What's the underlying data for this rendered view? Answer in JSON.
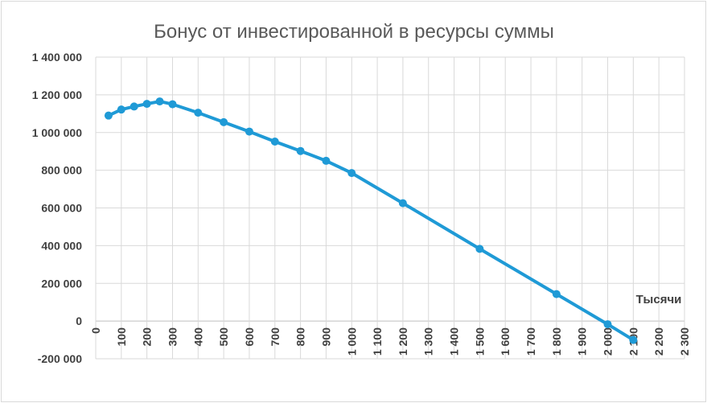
{
  "chart_data": {
    "type": "scatter",
    "title": "Бонус от инвестированной в ресурсы суммы",
    "x_unit_label": "Тысячи",
    "xlim": [
      0,
      2300
    ],
    "ylim": [
      -200000,
      1400000
    ],
    "x_ticks": [
      0,
      100,
      200,
      300,
      400,
      500,
      600,
      700,
      800,
      900,
      1000,
      1100,
      1200,
      1300,
      1400,
      1500,
      1600,
      1700,
      1800,
      1900,
      2000,
      2100,
      2200,
      2300
    ],
    "x_tick_labels": [
      "0",
      "100",
      "200",
      "300",
      "400",
      "500",
      "600",
      "700",
      "800",
      "900",
      "1 000",
      "1 100",
      "1 200",
      "1 300",
      "1 400",
      "1 500",
      "1 600",
      "1 700",
      "1 800",
      "1 900",
      "2 000",
      "2 100",
      "2 200",
      "2 300"
    ],
    "y_ticks": [
      -200000,
      0,
      200000,
      400000,
      600000,
      800000,
      1000000,
      1200000,
      1400000
    ],
    "y_tick_labels": [
      "-200 000",
      "0",
      "200 000",
      "400 000",
      "600 000",
      "800 000",
      "1 000 000",
      "1 200 000",
      "1 400 000"
    ],
    "grid": true,
    "series": [
      {
        "color": "#1f9ad6",
        "points": [
          [
            50,
            1090000
          ],
          [
            100,
            1122000
          ],
          [
            150,
            1138000
          ],
          [
            200,
            1152000
          ],
          [
            250,
            1165000
          ],
          [
            300,
            1150000
          ],
          [
            400,
            1105000
          ],
          [
            500,
            1055000
          ],
          [
            600,
            1005000
          ],
          [
            700,
            952000
          ],
          [
            800,
            902000
          ],
          [
            900,
            850000
          ],
          [
            1000,
            785000
          ],
          [
            1200,
            625000
          ],
          [
            1500,
            383000
          ],
          [
            1800,
            143000
          ],
          [
            2000,
            -17000
          ],
          [
            2100,
            -100000
          ]
        ]
      }
    ]
  }
}
